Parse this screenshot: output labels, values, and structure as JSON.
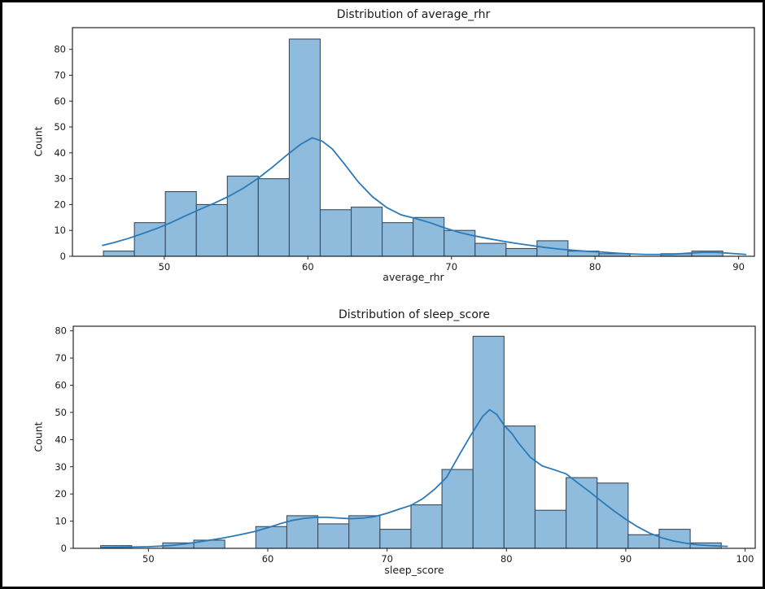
{
  "figure": {
    "background": "#ffffff",
    "border_color": "#000000"
  },
  "chart_data": [
    {
      "type": "bar",
      "subtype": "histogram_with_kde",
      "title": "Distribution of average_rhr",
      "xlabel": "average_rhr",
      "ylabel": "Count",
      "legend": "none",
      "grid": false,
      "x_ticks": [
        50,
        60,
        70,
        80,
        90
      ],
      "y_ticks": [
        0,
        10,
        20,
        30,
        40,
        50,
        60,
        70,
        80
      ],
      "xlim": [
        43.6,
        91.1
      ],
      "ylim": [
        0,
        88.4
      ],
      "bins": {
        "start": 45.76,
        "width": 2.157,
        "counts": [
          2,
          13,
          25,
          20,
          31,
          30,
          84,
          18,
          19,
          13,
          15,
          10,
          5,
          3,
          6,
          2,
          1,
          0,
          1,
          2
        ]
      },
      "total_count": 300,
      "kde_points": [
        [
          45.7,
          4.2
        ],
        [
          46.5,
          5.3
        ],
        [
          47.5,
          6.9
        ],
        [
          48.5,
          8.8
        ],
        [
          49.5,
          10.8
        ],
        [
          50.5,
          13.1
        ],
        [
          51.5,
          15.7
        ],
        [
          52.5,
          18.2
        ],
        [
          53.5,
          20.6
        ],
        [
          54.5,
          23.2
        ],
        [
          55.5,
          26.3
        ],
        [
          56.5,
          30.0
        ],
        [
          57.5,
          34.3
        ],
        [
          58.5,
          39.0
        ],
        [
          59.5,
          43.3
        ],
        [
          60.3,
          45.8
        ],
        [
          61.0,
          44.5
        ],
        [
          61.7,
          41.5
        ],
        [
          62.5,
          36.0
        ],
        [
          63.5,
          28.8
        ],
        [
          64.5,
          23.0
        ],
        [
          65.5,
          18.8
        ],
        [
          66.5,
          16.0
        ],
        [
          67.5,
          14.6
        ],
        [
          68.5,
          13.0
        ],
        [
          69.5,
          11.0
        ],
        [
          70.5,
          9.3
        ],
        [
          71.5,
          8.0
        ],
        [
          72.5,
          6.9
        ],
        [
          73.5,
          5.9
        ],
        [
          74.5,
          5.0
        ],
        [
          75.5,
          4.2
        ],
        [
          76.5,
          3.4
        ],
        [
          77.5,
          2.8
        ],
        [
          78.5,
          2.3
        ],
        [
          79.5,
          1.9
        ],
        [
          80.5,
          1.6
        ],
        [
          81.5,
          1.2
        ],
        [
          82.5,
          0.9
        ],
        [
          83.5,
          0.7
        ],
        [
          84.5,
          0.7
        ],
        [
          85.5,
          0.8
        ],
        [
          86.5,
          1.2
        ],
        [
          87.5,
          1.5
        ],
        [
          88.5,
          1.5
        ],
        [
          89.5,
          1.1
        ],
        [
          90.5,
          0.7
        ]
      ],
      "colors": {
        "bar_fill": "#8fbcdc",
        "bar_edge": "#3c4a5a",
        "kde_line": "#2a7ab9",
        "axis": "#262626",
        "text": "#1a1a1a"
      }
    },
    {
      "type": "bar",
      "subtype": "histogram_with_kde",
      "title": "Distribution of sleep_score",
      "xlabel": "sleep_score",
      "ylabel": "Count",
      "legend": "none",
      "grid": false,
      "x_ticks": [
        50,
        60,
        70,
        80,
        90,
        100
      ],
      "y_ticks": [
        0,
        10,
        20,
        30,
        40,
        50,
        60,
        70,
        80
      ],
      "xlim": [
        43.7,
        100.85
      ],
      "ylim": [
        0,
        81.7
      ],
      "bins": {
        "start": 46.0,
        "width": 2.6,
        "counts": [
          1,
          0,
          2,
          3,
          0,
          8,
          12,
          9,
          12,
          7,
          16,
          29,
          78,
          45,
          14,
          26,
          24,
          5,
          7,
          2
        ]
      },
      "total_count": 300,
      "kde_points": [
        [
          46,
          0.3
        ],
        [
          48,
          0.45
        ],
        [
          50,
          0.6
        ],
        [
          51,
          0.8
        ],
        [
          52,
          1.1
        ],
        [
          53,
          1.6
        ],
        [
          54,
          2.2
        ],
        [
          55,
          2.9
        ],
        [
          56,
          3.6
        ],
        [
          57,
          4.4
        ],
        [
          58,
          5.3
        ],
        [
          59,
          6.3
        ],
        [
          60,
          7.6
        ],
        [
          61,
          9.0
        ],
        [
          62,
          10.2
        ],
        [
          63,
          11.0
        ],
        [
          64,
          11.4
        ],
        [
          65,
          11.4
        ],
        [
          66,
          11.1
        ],
        [
          67,
          10.9
        ],
        [
          68,
          11.1
        ],
        [
          69,
          11.7
        ],
        [
          70,
          12.9
        ],
        [
          71,
          14.4
        ],
        [
          72,
          15.8
        ],
        [
          73,
          18.3
        ],
        [
          74,
          21.8
        ],
        [
          75,
          26.2
        ],
        [
          76,
          34.0
        ],
        [
          77,
          41.5
        ],
        [
          78,
          48.5
        ],
        [
          78.6,
          51.0
        ],
        [
          79.2,
          49.2
        ],
        [
          79.8,
          45.3
        ],
        [
          80.5,
          42.0
        ],
        [
          81,
          38.8
        ],
        [
          82,
          33.5
        ],
        [
          83,
          30.3
        ],
        [
          84,
          28.9
        ],
        [
          85,
          27.4
        ],
        [
          86,
          24.0
        ],
        [
          87,
          20.7
        ],
        [
          88,
          17.2
        ],
        [
          89,
          13.8
        ],
        [
          90,
          10.7
        ],
        [
          91,
          7.9
        ],
        [
          92,
          5.6
        ],
        [
          93,
          3.9
        ],
        [
          94,
          2.7
        ],
        [
          95,
          1.9
        ],
        [
          96,
          1.3
        ],
        [
          97,
          1.0
        ],
        [
          98,
          0.8
        ],
        [
          98.5,
          0.7
        ]
      ],
      "colors": {
        "bar_fill": "#8fbcdc",
        "bar_edge": "#3c4a5a",
        "kde_line": "#2a7ab9",
        "axis": "#262626",
        "text": "#1a1a1a"
      }
    }
  ]
}
